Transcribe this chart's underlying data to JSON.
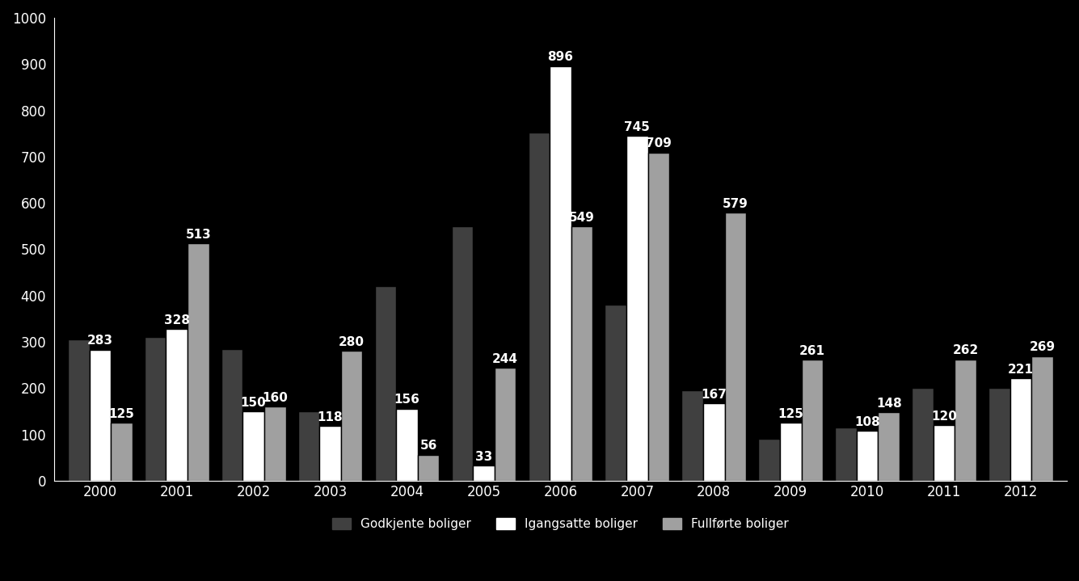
{
  "years": [
    "2000",
    "2001",
    "2002",
    "2003",
    "2004",
    "2005",
    "2006",
    "2007",
    "2008",
    "2009",
    "2010",
    "2011",
    "2012"
  ],
  "godkjente": [
    305,
    310,
    285,
    150,
    420,
    550,
    752,
    380,
    195,
    90,
    115,
    200,
    200
  ],
  "igangsatte": [
    283,
    328,
    150,
    118,
    156,
    33,
    896,
    745,
    167,
    125,
    108,
    120,
    221
  ],
  "fullforte": [
    125,
    513,
    160,
    280,
    56,
    244,
    549,
    709,
    579,
    261,
    148,
    262,
    269
  ],
  "igangsatte_labels": [
    283,
    328,
    150,
    118,
    156,
    33,
    896,
    745,
    167,
    125,
    108,
    120,
    221
  ],
  "fullforte_labels": [
    125,
    513,
    160,
    280,
    56,
    244,
    549,
    709,
    579,
    261,
    148,
    262,
    269
  ],
  "bar_colors": [
    "#404040",
    "#ffffff",
    "#a0a0a0"
  ],
  "legend_labels": [
    "Godkjente boliger",
    "Igangsatte boliger",
    "Fullførte boliger"
  ],
  "ylim": [
    0,
    1000
  ],
  "yticks": [
    0,
    100,
    200,
    300,
    400,
    500,
    600,
    700,
    800,
    900,
    1000
  ],
  "background_color": "#000000",
  "text_color": "#ffffff",
  "label_fontsize": 11,
  "tick_fontsize": 12,
  "legend_fontsize": 11
}
